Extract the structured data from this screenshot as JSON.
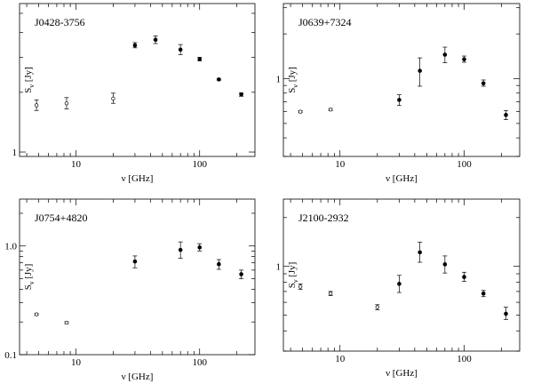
{
  "figure_title": "",
  "chart_data": [
    {
      "type": "scatter",
      "source_label": "J0428-3756",
      "xlabel": "ν [GHz]",
      "ylabel_main": "S",
      "ylabel_sub": "ν",
      "ylabel_unit": "[Jy]",
      "xscale": "log",
      "yscale": "log",
      "xlim": [
        3.5,
        280
      ],
      "ylim": [
        0.95,
        5.6
      ],
      "xticks": [
        {
          "v": 10,
          "label": "10"
        },
        {
          "v": 100,
          "label": "100"
        }
      ],
      "yticks": [
        {
          "v": 1,
          "label": "1"
        }
      ],
      "series": [
        {
          "marker": "open",
          "points": [
            {
              "x": 4.8,
              "y": 1.72,
              "lo": 1.62,
              "hi": 1.83
            },
            {
              "x": 8.4,
              "y": 1.76,
              "lo": 1.65,
              "hi": 1.88
            },
            {
              "x": 20,
              "y": 1.86,
              "lo": 1.76,
              "hi": 1.98
            }
          ]
        },
        {
          "marker": "filled",
          "points": [
            {
              "x": 30,
              "y": 3.45,
              "lo": 3.35,
              "hi": 3.56
            },
            {
              "x": 44,
              "y": 3.68,
              "lo": 3.52,
              "hi": 3.85
            },
            {
              "x": 70,
              "y": 3.28,
              "lo": 3.1,
              "hi": 3.48
            },
            {
              "x": 100,
              "y": 2.94,
              "lo": 2.88,
              "hi": 3.0
            },
            {
              "x": 143,
              "y": 2.32,
              "lo": 2.3,
              "hi": 2.34
            },
            {
              "x": 217,
              "y": 1.95,
              "lo": 1.91,
              "hi": 1.99
            }
          ]
        }
      ]
    },
    {
      "type": "scatter",
      "source_label": "J0639+7324",
      "xlabel": "ν [GHz]",
      "ylabel_main": "S",
      "ylabel_sub": "ν",
      "ylabel_unit": "[Jy]",
      "xscale": "log",
      "yscale": "log",
      "xlim": [
        3.5,
        280
      ],
      "ylim": [
        0.3,
        3.2
      ],
      "xticks": [
        {
          "v": 10,
          "label": "10"
        },
        {
          "v": 100,
          "label": "100"
        }
      ],
      "yticks": [
        {
          "v": 1,
          "label": "1"
        }
      ],
      "series": [
        {
          "marker": "open",
          "points": [
            {
              "x": 4.8,
              "y": 0.6,
              "lo": 0.59,
              "hi": 0.61
            },
            {
              "x": 8.4,
              "y": 0.62,
              "lo": 0.61,
              "hi": 0.63
            }
          ]
        },
        {
          "marker": "filled",
          "points": [
            {
              "x": 30,
              "y": 0.72,
              "lo": 0.66,
              "hi": 0.78
            },
            {
              "x": 44,
              "y": 1.13,
              "lo": 0.89,
              "hi": 1.38
            },
            {
              "x": 70,
              "y": 1.45,
              "lo": 1.28,
              "hi": 1.63
            },
            {
              "x": 100,
              "y": 1.35,
              "lo": 1.29,
              "hi": 1.42
            },
            {
              "x": 143,
              "y": 0.93,
              "lo": 0.89,
              "hi": 0.98
            },
            {
              "x": 217,
              "y": 0.57,
              "lo": 0.53,
              "hi": 0.61
            }
          ]
        }
      ]
    },
    {
      "type": "scatter",
      "source_label": "J0754+4820",
      "xlabel": "ν [GHz]",
      "ylabel_main": "S",
      "ylabel_sub": "ν",
      "ylabel_unit": "[Jy]",
      "xscale": "log",
      "yscale": "log",
      "xlim": [
        3.5,
        280
      ],
      "ylim": [
        0.1,
        2.7
      ],
      "xticks": [
        {
          "v": 10,
          "label": "10"
        },
        {
          "v": 100,
          "label": "100"
        }
      ],
      "yticks": [
        {
          "v": 0.1,
          "label": "0.1"
        },
        {
          "v": 1,
          "label": "1.0"
        }
      ],
      "series": [
        {
          "marker": "open",
          "points": [
            {
              "x": 4.8,
              "y": 0.235,
              "lo": 0.23,
              "hi": 0.24
            },
            {
              "x": 8.4,
              "y": 0.197,
              "lo": 0.193,
              "hi": 0.201
            }
          ]
        },
        {
          "marker": "filled",
          "points": [
            {
              "x": 30,
              "y": 0.72,
              "lo": 0.63,
              "hi": 0.81
            },
            {
              "x": 70,
              "y": 0.92,
              "lo": 0.77,
              "hi": 1.09
            },
            {
              "x": 100,
              "y": 0.97,
              "lo": 0.9,
              "hi": 1.05
            },
            {
              "x": 143,
              "y": 0.68,
              "lo": 0.61,
              "hi": 0.75
            },
            {
              "x": 217,
              "y": 0.55,
              "lo": 0.5,
              "hi": 0.6
            }
          ]
        }
      ]
    },
    {
      "type": "scatter",
      "source_label": "J2100-2932",
      "xlabel": "ν [GHz]",
      "ylabel_main": "S",
      "ylabel_sub": "ν",
      "ylabel_unit": "[Jy]",
      "xscale": "log",
      "yscale": "log",
      "xlim": [
        3.5,
        280
      ],
      "ylim": [
        0.3,
        2.6
      ],
      "xticks": [
        {
          "v": 10,
          "label": "10"
        },
        {
          "v": 100,
          "label": "100"
        }
      ],
      "yticks": [
        {
          "v": 1,
          "label": "1"
        }
      ],
      "series": [
        {
          "marker": "open",
          "points": [
            {
              "x": 4.8,
              "y": 0.75,
              "lo": 0.72,
              "hi": 0.78
            },
            {
              "x": 8.4,
              "y": 0.68,
              "lo": 0.66,
              "hi": 0.7
            },
            {
              "x": 20,
              "y": 0.56,
              "lo": 0.54,
              "hi": 0.58
            }
          ]
        },
        {
          "marker": "filled",
          "points": [
            {
              "x": 30,
              "y": 0.78,
              "lo": 0.69,
              "hi": 0.88
            },
            {
              "x": 44,
              "y": 1.22,
              "lo": 1.06,
              "hi": 1.41
            },
            {
              "x": 70,
              "y": 1.03,
              "lo": 0.91,
              "hi": 1.16
            },
            {
              "x": 100,
              "y": 0.86,
              "lo": 0.81,
              "hi": 0.92
            },
            {
              "x": 143,
              "y": 0.68,
              "lo": 0.65,
              "hi": 0.71
            },
            {
              "x": 217,
              "y": 0.51,
              "lo": 0.47,
              "hi": 0.56
            }
          ]
        }
      ]
    }
  ]
}
